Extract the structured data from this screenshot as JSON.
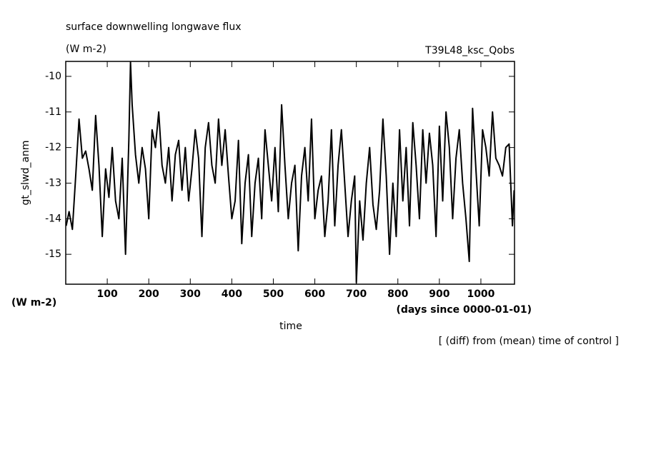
{
  "chart_data": {
    "type": "line",
    "title": "surface downwelling longwave flux",
    "subtitle": "(W m-2)",
    "experiment": "T39L48_ksc_Qobs",
    "y_label": "gt_slwd_anm",
    "y_units": "(W m-2)",
    "x_label": "time",
    "x_units": "(days since 0000-01-01)",
    "note": "[ (diff) from (mean) time of control ]",
    "color": "#000000",
    "xlim": [
      0,
      1081
    ],
    "ylim": [
      -15.84,
      -9.58
    ],
    "xticks": [
      100,
      200,
      300,
      400,
      500,
      600,
      700,
      800,
      900,
      1000
    ],
    "yticks": [
      -15,
      -14,
      -13,
      -12,
      -11,
      -10
    ],
    "x": [
      1,
      8,
      16,
      24,
      32,
      40,
      48,
      56,
      64,
      72,
      80,
      88,
      96,
      104,
      112,
      120,
      128,
      136,
      144,
      152,
      156,
      160,
      168,
      176,
      184,
      192,
      200,
      208,
      216,
      224,
      232,
      240,
      248,
      256,
      264,
      272,
      280,
      288,
      296,
      304,
      312,
      320,
      328,
      336,
      344,
      352,
      360,
      368,
      376,
      384,
      392,
      400,
      408,
      416,
      424,
      432,
      440,
      448,
      456,
      464,
      472,
      480,
      488,
      496,
      504,
      512,
      520,
      528,
      536,
      544,
      552,
      560,
      568,
      576,
      584,
      592,
      600,
      608,
      616,
      624,
      632,
      640,
      648,
      656,
      664,
      672,
      680,
      688,
      696,
      700,
      708,
      716,
      724,
      732,
      740,
      748,
      756,
      764,
      772,
      780,
      788,
      796,
      804,
      812,
      820,
      828,
      836,
      844,
      852,
      860,
      868,
      876,
      884,
      892,
      900,
      908,
      916,
      924,
      932,
      940,
      948,
      956,
      964,
      972,
      980,
      988,
      996,
      1004,
      1012,
      1020,
      1028,
      1036,
      1044,
      1052,
      1060,
      1068,
      1076,
      1080
    ],
    "values": [
      -14.2,
      -13.8,
      -14.3,
      -12.8,
      -11.2,
      -12.3,
      -12.1,
      -12.6,
      -13.2,
      -11.1,
      -12.5,
      -14.5,
      -12.6,
      -13.4,
      -12.0,
      -13.5,
      -14.0,
      -12.3,
      -15.0,
      -11.8,
      -9.6,
      -10.8,
      -12.2,
      -13.0,
      -12.0,
      -12.6,
      -14.0,
      -11.5,
      -12.0,
      -11.0,
      -12.5,
      -13.0,
      -12.0,
      -13.5,
      -12.2,
      -11.8,
      -13.2,
      -12.0,
      -13.5,
      -12.6,
      -11.5,
      -12.3,
      -14.5,
      -12.0,
      -11.3,
      -12.5,
      -13.0,
      -11.2,
      -12.5,
      -11.5,
      -12.8,
      -14.0,
      -13.5,
      -11.8,
      -14.7,
      -13.0,
      -12.2,
      -14.5,
      -13.0,
      -12.3,
      -14.0,
      -11.5,
      -12.5,
      -13.5,
      -12.0,
      -13.8,
      -10.8,
      -12.5,
      -14.0,
      -13.0,
      -12.5,
      -14.9,
      -12.8,
      -12.0,
      -13.5,
      -11.2,
      -14.0,
      -13.2,
      -12.8,
      -14.5,
      -13.5,
      -11.5,
      -14.2,
      -12.5,
      -11.5,
      -13.0,
      -14.5,
      -13.5,
      -12.8,
      -15.8,
      -13.5,
      -14.6,
      -13.0,
      -12.0,
      -13.6,
      -14.3,
      -13.2,
      -11.2,
      -12.8,
      -15.0,
      -13.0,
      -14.5,
      -11.5,
      -13.5,
      -12.0,
      -14.2,
      -11.3,
      -12.5,
      -14.0,
      -11.5,
      -13.0,
      -11.6,
      -12.5,
      -14.5,
      -11.4,
      -13.5,
      -11.0,
      -12.0,
      -14.0,
      -12.3,
      -11.5,
      -13.0,
      -14.0,
      -15.2,
      -10.9,
      -12.6,
      -14.2,
      -11.5,
      -12.0,
      -12.8,
      -11.0,
      -12.3,
      -12.5,
      -12.8,
      -12.0,
      -11.9,
      -14.2,
      -13.2
    ]
  }
}
